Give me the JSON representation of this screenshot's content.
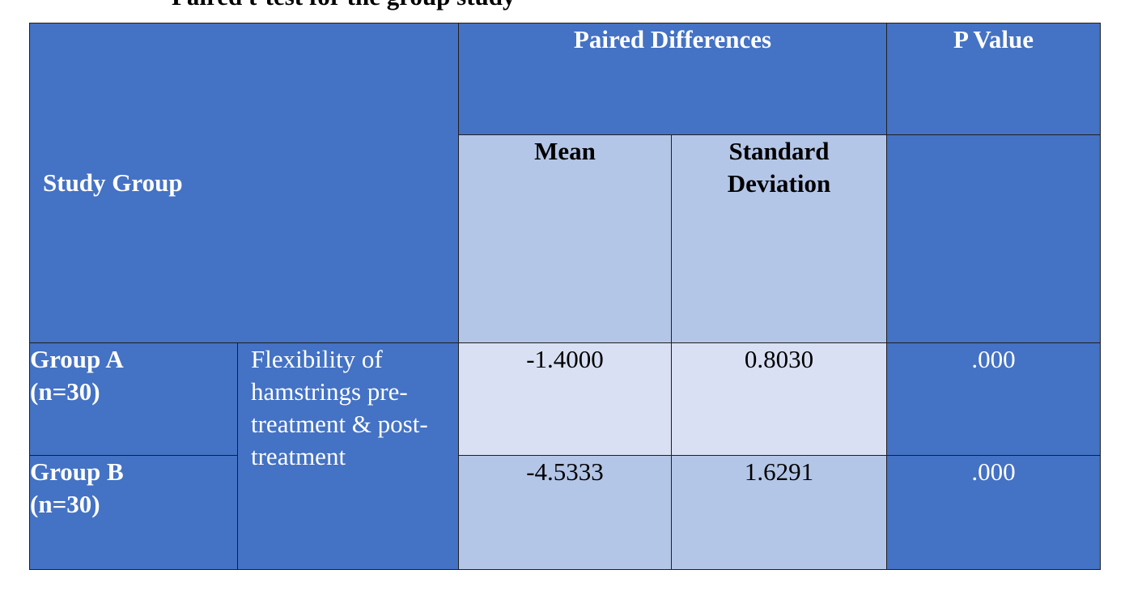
{
  "cutoff_heading": "Paired t-test for the group study",
  "table": {
    "study_group_header": "Study Group",
    "paired_differences_header": "Paired Differences",
    "p_value_header": "P Value",
    "mean_header": "Mean",
    "sd_header_line1": "Standard",
    "sd_header_line2": "Deviation",
    "measure_description": "Flexibility of hamstrings pre-treatment & post-treatment",
    "rows": [
      {
        "group_line1": "Group A",
        "group_line2": "(n=30)",
        "mean": "-1.4000",
        "sd": "0.8030",
        "p_value": ".000"
      },
      {
        "group_line1": "Group B",
        "group_line2": "(n=30)",
        "mean": "-4.5333",
        "sd": "1.6291",
        "p_value": ".000"
      }
    ]
  },
  "colors": {
    "header_blue": "#4472c4",
    "light_blue": "#b4c6e7",
    "lightest_blue": "#d9e0f3",
    "border": "#1f1f1f"
  }
}
